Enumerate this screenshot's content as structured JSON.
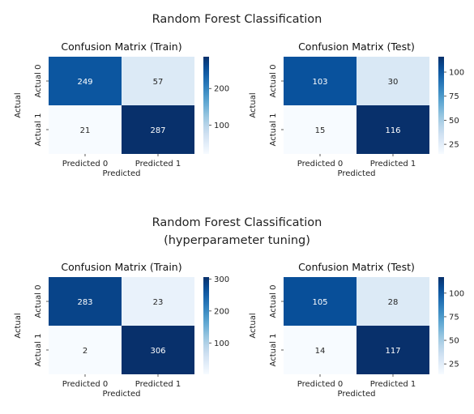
{
  "titles": {
    "top": "Random Forest Classification",
    "bottom_line1": "Random Forest Classification",
    "bottom_line2": "(hyperparameter tuning)"
  },
  "colors": {
    "low": "#f7fbff",
    "high": "#08306b",
    "light_text": "#ffffff",
    "dark_text": "#262626"
  },
  "chart_data": [
    {
      "type": "heatmap",
      "title": "Confusion Matrix (Train)",
      "xlabel": "Predicted",
      "ylabel": "Actual",
      "x_tick_labels": [
        "Predicted 0",
        "Predicted 1"
      ],
      "y_tick_labels": [
        "Actual 0",
        "Actual 1"
      ],
      "values": [
        [
          249,
          57
        ],
        [
          21,
          287
        ]
      ],
      "colorbar": {
        "min": 21,
        "max": 287,
        "ticks": [
          100,
          200
        ],
        "cmap": "Blues"
      }
    },
    {
      "type": "heatmap",
      "title": "Confusion Matrix (Test)",
      "xlabel": "Predicted",
      "ylabel": "Actual",
      "x_tick_labels": [
        "Predicted 0",
        "Predicted 1"
      ],
      "y_tick_labels": [
        "Actual 0",
        "Actual 1"
      ],
      "values": [
        [
          103,
          30
        ],
        [
          15,
          116
        ]
      ],
      "colorbar": {
        "min": 15,
        "max": 116,
        "ticks": [
          25,
          50,
          75,
          100
        ],
        "cmap": "Blues"
      }
    },
    {
      "type": "heatmap",
      "title": "Confusion Matrix (Train)",
      "xlabel": "Predicted",
      "ylabel": "Actual",
      "x_tick_labels": [
        "Predicted 0",
        "Predicted 1"
      ],
      "y_tick_labels": [
        "Actual 0",
        "Actual 1"
      ],
      "values": [
        [
          283,
          23
        ],
        [
          2,
          306
        ]
      ],
      "colorbar": {
        "min": 2,
        "max": 306,
        "ticks": [
          100,
          200,
          300
        ],
        "cmap": "Blues"
      }
    },
    {
      "type": "heatmap",
      "title": "Confusion Matrix (Test)",
      "xlabel": "Predicted",
      "ylabel": "Actual",
      "x_tick_labels": [
        "Predicted 0",
        "Predicted 1"
      ],
      "y_tick_labels": [
        "Actual 0",
        "Actual 1"
      ],
      "values": [
        [
          105,
          28
        ],
        [
          14,
          117
        ]
      ],
      "colorbar": {
        "min": 14,
        "max": 117,
        "ticks": [
          25,
          50,
          75,
          100
        ],
        "cmap": "Blues"
      }
    }
  ]
}
